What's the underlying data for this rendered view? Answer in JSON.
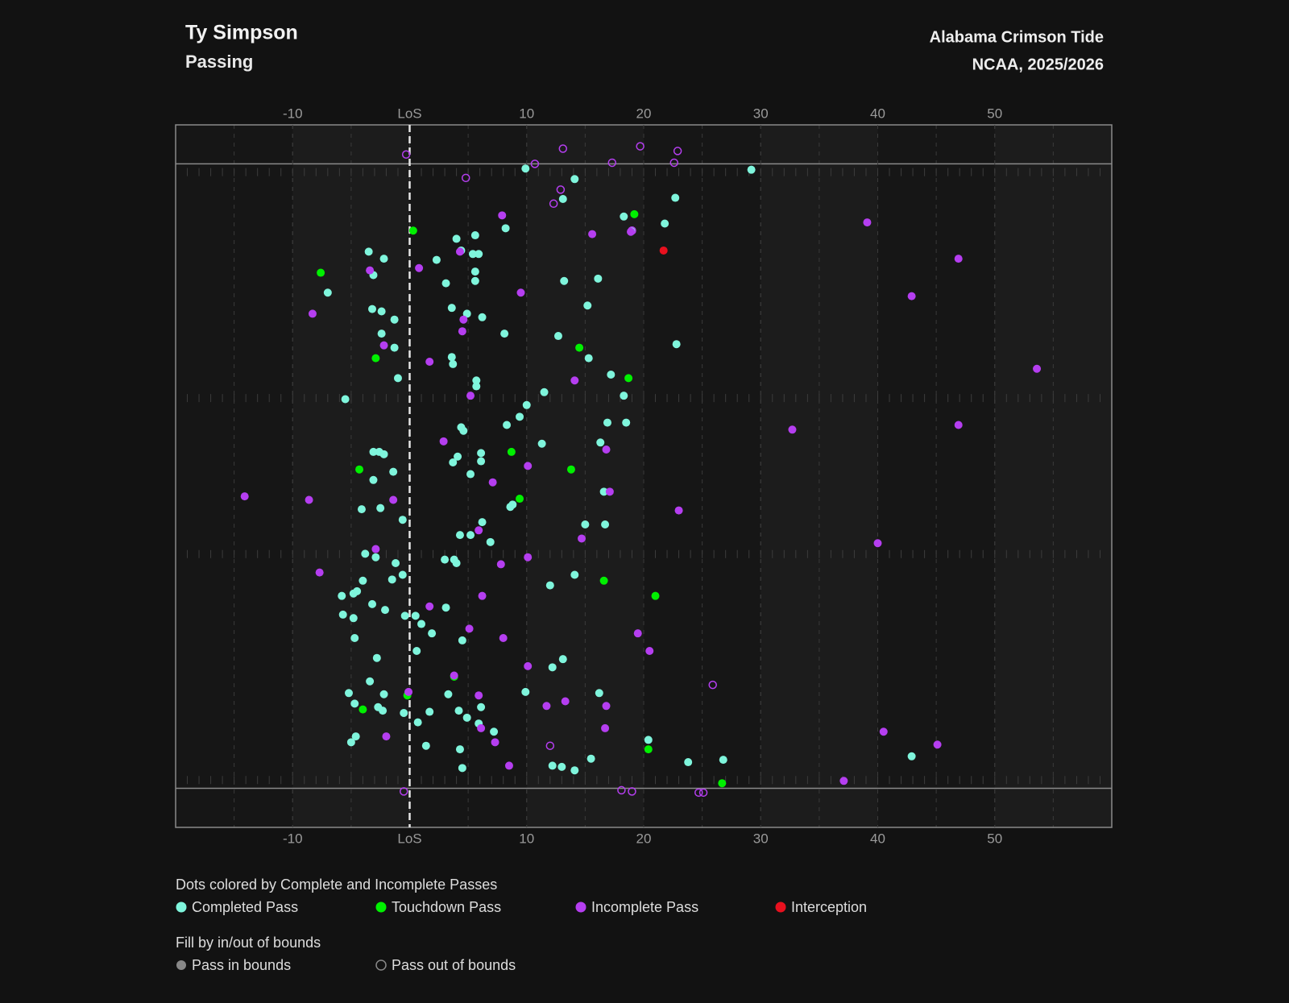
{
  "chart_data": {
    "type": "scatter",
    "title": "Ty Simpson",
    "subtitle": "Passing",
    "team": "Alabama Crimson Tide",
    "season": "NCAA, 2025/2026",
    "xlim": [
      -20,
      60
    ],
    "xticks": [
      -10,
      {
        "value": 0,
        "label": "LoS"
      },
      10,
      20,
      30,
      40,
      50
    ],
    "ylim": [
      -3.33,
      56.67
    ],
    "y_inverted": true,
    "sidelines": [
      0,
      53.33
    ],
    "hash_marks": [
      20,
      33.33
    ],
    "color_legend_title": "Dots colored by Complete and Incomplete Passes",
    "fill_legend": {
      "title": "Fill by in/out of bounds",
      "in": "Pass in bounds",
      "out": "Pass out of bounds"
    },
    "series": [
      {
        "name": "Completed Pass",
        "color": "#7ff5dc",
        "x": [
          9.9,
          29.2,
          14.1,
          13.1,
          22.7,
          18.3,
          21.8,
          8.2,
          4.0,
          5.6,
          19.0,
          4.4,
          5.4,
          5.9,
          -3.5,
          -2.2,
          2.3,
          -3.1,
          5.6,
          3.1,
          5.6,
          13.2,
          16.1,
          -7.0,
          -3.2,
          -2.4,
          3.6,
          4.9,
          -1.3,
          6.2,
          15.2,
          -2.4,
          8.1,
          12.7,
          22.8,
          -1.3,
          3.6,
          3.7,
          15.3,
          -1.0,
          5.7,
          5.7,
          17.2,
          11.5,
          18.3,
          -5.5,
          10.0,
          9.4,
          8.3,
          4.4,
          4.6,
          16.9,
          18.5,
          11.3,
          16.3,
          -3.1,
          -2.6,
          -2.2,
          4.1,
          6.1,
          6.1,
          3.7,
          -1.4,
          5.2,
          -3.1,
          16.6,
          8.6,
          8.8,
          -4.1,
          -2.5,
          -0.6,
          6.2,
          15.0,
          16.7,
          4.3,
          5.2,
          6.9,
          -3.8,
          -2.9,
          3.0,
          3.8,
          4.0,
          -1.2,
          -0.6,
          -1.5,
          14.1,
          12.0,
          -4.0,
          -5.8,
          -4.8,
          -4.5,
          -3.2,
          -2.1,
          3.1,
          -5.7,
          -4.8,
          -0.4,
          0.5,
          1.0,
          1.9,
          -4.7,
          4.5,
          0.6,
          -2.8,
          13.1,
          12.2,
          -3.4,
          -5.2,
          -2.2,
          3.3,
          9.9,
          16.2,
          -4.7,
          -2.7,
          -2.3,
          -0.5,
          1.7,
          4.2,
          6.1,
          4.9,
          5.9,
          0.7,
          7.2,
          -5.0,
          -4.6,
          1.4,
          4.3,
          20.4,
          42.9,
          15.5,
          26.8,
          23.8,
          12.2,
          13.0,
          14.1,
          4.5
        ],
        "values": [
          0.4,
          0.5,
          1.3,
          3.0,
          2.9,
          4.5,
          5.1,
          5.5,
          6.4,
          6.1,
          5.7,
          7.4,
          7.7,
          7.7,
          7.5,
          8.1,
          8.2,
          9.5,
          9.2,
          10.2,
          10.0,
          10.0,
          9.8,
          11.0,
          12.4,
          12.6,
          12.3,
          12.8,
          13.3,
          13.1,
          12.1,
          14.5,
          14.5,
          14.7,
          15.4,
          15.7,
          16.5,
          17.1,
          16.6,
          18.3,
          18.5,
          19.0,
          18.0,
          19.5,
          19.8,
          20.1,
          20.6,
          21.6,
          22.3,
          22.5,
          22.8,
          22.1,
          22.1,
          23.9,
          23.8,
          24.6,
          24.6,
          24.8,
          25.0,
          24.7,
          25.4,
          25.5,
          26.3,
          26.5,
          27.0,
          28.0,
          29.3,
          29.1,
          29.5,
          29.4,
          30.4,
          30.6,
          30.8,
          30.8,
          31.7,
          31.7,
          32.3,
          33.3,
          33.6,
          33.8,
          33.8,
          34.1,
          34.1,
          35.1,
          35.5,
          35.1,
          36.0,
          35.6,
          36.9,
          36.7,
          36.5,
          37.6,
          38.1,
          37.9,
          38.5,
          38.8,
          38.6,
          38.6,
          39.3,
          40.1,
          40.5,
          40.7,
          41.6,
          42.2,
          42.3,
          43.0,
          44.2,
          45.2,
          45.3,
          45.3,
          45.1,
          45.2,
          46.1,
          46.4,
          46.7,
          46.9,
          46.8,
          46.7,
          46.4,
          47.3,
          47.8,
          47.7,
          48.5,
          49.4,
          48.9,
          49.7,
          50.0,
          49.2,
          50.6,
          50.8,
          50.9,
          51.1,
          51.4,
          51.5,
          51.8,
          51.6
        ],
        "in_bounds": [
          true,
          true,
          true,
          true,
          true,
          true,
          true,
          true,
          true,
          true,
          true,
          true,
          true,
          true,
          true,
          true,
          true,
          true,
          true,
          true,
          true,
          true,
          true,
          true,
          true,
          true,
          true,
          true,
          true,
          true,
          true,
          true,
          true,
          true,
          true,
          true,
          true,
          true,
          true,
          true,
          true,
          true,
          true,
          true,
          true,
          true,
          true,
          true,
          true,
          true,
          true,
          true,
          true,
          true,
          true,
          true,
          true,
          true,
          true,
          true,
          true,
          true,
          true,
          true,
          true,
          true,
          true,
          true,
          true,
          true,
          true,
          true,
          true,
          true,
          true,
          true,
          true,
          true,
          true,
          true,
          true,
          true,
          true,
          true,
          true,
          true,
          true,
          true,
          true,
          true,
          true,
          true,
          true,
          true,
          true,
          true,
          true,
          true,
          true,
          true,
          true,
          true,
          true,
          true,
          true,
          true,
          true,
          true,
          true,
          true,
          true,
          true,
          true,
          true,
          true,
          true,
          true,
          true,
          true,
          true,
          true,
          true,
          true,
          true,
          true,
          true,
          true,
          true,
          true,
          true,
          true,
          true,
          true,
          true,
          true,
          true,
          true,
          true
        ]
      },
      {
        "name": "Touchdown Pass",
        "color": "#00f000",
        "x": [
          0.3,
          19.2,
          -7.6,
          -2.9,
          14.5,
          18.7,
          8.7,
          -4.3,
          13.8,
          9.4,
          16.6,
          21.0,
          3.8,
          -0.2,
          -4.0,
          20.4,
          26.7
        ],
        "values": [
          5.7,
          4.3,
          9.3,
          16.6,
          15.7,
          18.3,
          24.6,
          26.1,
          26.1,
          28.6,
          35.6,
          36.9,
          43.8,
          45.4,
          46.6,
          50.0,
          52.9
        ],
        "in_bounds": [
          true,
          true,
          true,
          true,
          true,
          true,
          true,
          true,
          true,
          true,
          true,
          true,
          true,
          true,
          true,
          true,
          true
        ]
      },
      {
        "name": "Incomplete Pass",
        "color": "#b53ef0",
        "x": [
          7.9,
          39.1,
          15.6,
          18.9,
          4.3,
          46.9,
          0.8,
          -3.4,
          9.5,
          42.9,
          -8.3,
          4.6,
          4.5,
          -2.2,
          1.7,
          53.6,
          14.1,
          5.2,
          32.7,
          46.9,
          2.9,
          16.8,
          10.1,
          7.1,
          17.1,
          -14.1,
          -8.6,
          -1.4,
          23.0,
          5.9,
          14.7,
          40.0,
          -2.9,
          10.1,
          7.8,
          -7.7,
          6.2,
          1.7,
          5.1,
          19.5,
          8.0,
          20.5,
          10.1,
          3.8,
          -0.1,
          5.9,
          13.3,
          11.7,
          16.8,
          40.5,
          16.7,
          6.1,
          -2.0,
          7.3,
          45.1,
          8.5,
          37.1,
          -0.3,
          13.1,
          19.7,
          22.9,
          10.7,
          17.3,
          22.6,
          4.8,
          12.9,
          12.3,
          19.0,
          25.9,
          12.0,
          -0.5,
          18.1,
          19.0,
          24.7,
          25.1
        ],
        "values": [
          4.4,
          5.0,
          6.0,
          5.8,
          7.5,
          8.1,
          8.9,
          9.1,
          11.0,
          11.3,
          12.8,
          13.3,
          14.3,
          15.5,
          16.9,
          17.5,
          18.5,
          19.8,
          22.7,
          22.3,
          23.7,
          24.4,
          25.8,
          27.2,
          28.0,
          28.4,
          28.7,
          28.7,
          29.6,
          31.3,
          32.0,
          32.4,
          32.9,
          33.6,
          34.2,
          34.9,
          36.9,
          37.8,
          39.7,
          40.1,
          40.5,
          41.6,
          42.9,
          43.7,
          45.1,
          45.4,
          45.9,
          46.3,
          46.3,
          48.5,
          48.2,
          48.2,
          48.9,
          49.4,
          49.6,
          51.4,
          52.7,
          -0.8,
          -1.3,
          -1.5,
          -1.1,
          0.0,
          -0.1,
          -0.1,
          1.2,
          2.2,
          3.4,
          5.7,
          44.5,
          49.7,
          53.6,
          53.5,
          53.6,
          53.7,
          53.7
        ],
        "in_bounds": [
          true,
          true,
          true,
          true,
          true,
          true,
          true,
          true,
          true,
          true,
          true,
          true,
          true,
          true,
          true,
          true,
          true,
          true,
          true,
          true,
          true,
          true,
          true,
          true,
          true,
          true,
          true,
          true,
          true,
          true,
          true,
          true,
          true,
          true,
          true,
          true,
          true,
          true,
          true,
          true,
          true,
          true,
          true,
          true,
          true,
          true,
          true,
          true,
          true,
          true,
          true,
          true,
          true,
          true,
          true,
          true,
          true,
          false,
          false,
          false,
          false,
          false,
          false,
          false,
          false,
          false,
          false,
          false,
          false,
          false,
          false,
          false,
          false,
          false,
          false
        ]
      },
      {
        "name": "Interception",
        "color": "#e8101e",
        "x": [
          21.7
        ],
        "values": [
          7.4
        ],
        "in_bounds": [
          true
        ]
      }
    ]
  }
}
